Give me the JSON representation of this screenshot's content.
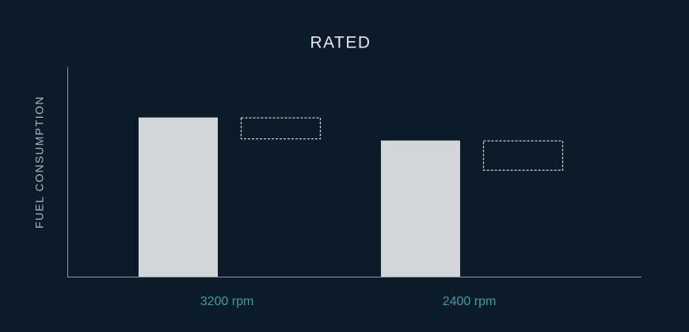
{
  "chart_data": {
    "type": "bar-range",
    "title": "RATED",
    "y_label": "FUEL CONSUMPTION",
    "categories": [
      "3200 rpm",
      "2400 rpm"
    ],
    "series": [
      {
        "color": "#d2d6d9",
        "values": [
          76,
          65
        ]
      },
      {
        "color": "#c9ced2",
        "style": "dashed",
        "low": [
          66,
          51
        ],
        "high": [
          76,
          65
        ]
      }
    ],
    "ylim": [
      0,
      100
    ],
    "grid": false
  }
}
